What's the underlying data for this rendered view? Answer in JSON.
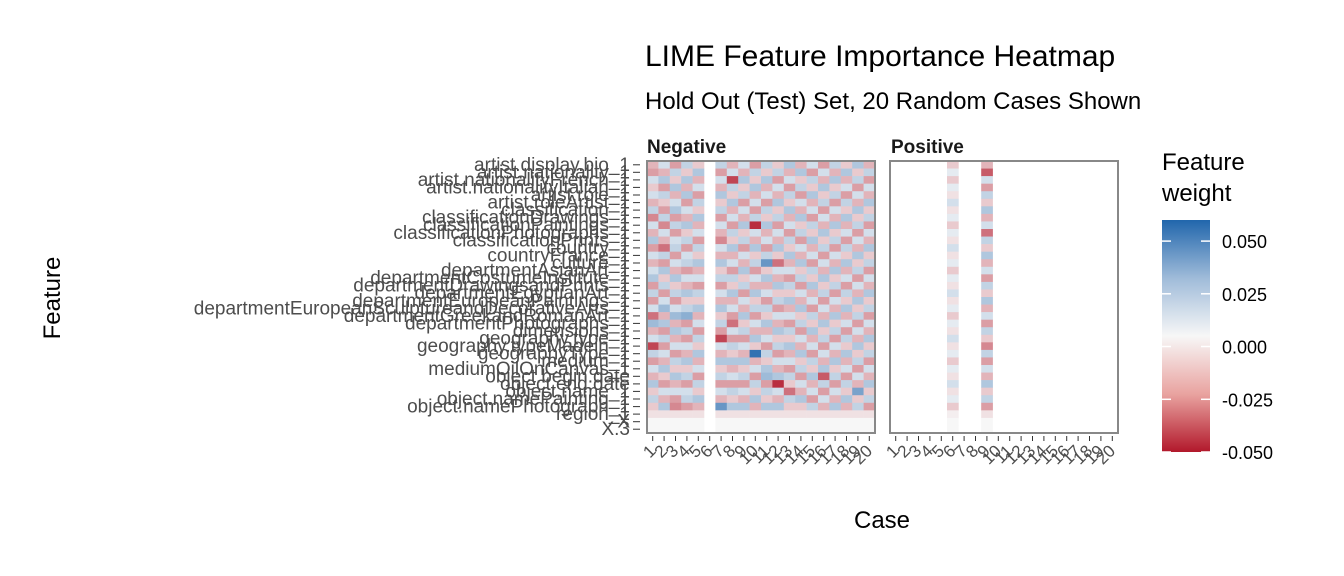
{
  "chart_data": {
    "type": "heatmap",
    "title": "LIME Feature Importance Heatmap",
    "subtitle": "Hold Out (Test) Set, 20 Random Cases Shown",
    "xlabel": "Case",
    "ylabel": "Feature",
    "facets": [
      "Negative",
      "Positive"
    ],
    "cases": [
      "1",
      "2",
      "3",
      "4",
      "5",
      "6",
      "7",
      "8",
      "9",
      "10",
      "11",
      "12",
      "13",
      "14",
      "15",
      "16",
      "17",
      "18",
      "19",
      "20"
    ],
    "x_tick_labels": [
      "1",
      "2",
      "3",
      "4",
      "5",
      "6",
      "7",
      "8",
      "9",
      "10",
      "11",
      "12",
      "13",
      "14",
      "15",
      "16",
      "17",
      "18",
      "19",
      "20"
    ],
    "features": [
      "artist.display.bio_1",
      "artist.nationality_1",
      "artist.nationalityFrench_1",
      "artist.nationalityItalian_1",
      "artist.role_1",
      "artist.roleArtist_1",
      "classification_1",
      "classificationDrawings_1",
      "classificationPaintings_1",
      "classificationPhotographs_1",
      "classificationPrints_1",
      "country_1",
      "countryFrance_1",
      "culture_1",
      "departmentAsianArt_1",
      "departmentCostumeInstitute_1",
      "departmentDrawingsandPrints_1",
      "departmentEgyptianArt_1",
      "departmentEuropeanPaintings_1",
      "departmentEuropeanSculptureandDecorativeArts_1",
      "departmentGreekandRomanArt_1",
      "departmentPhotographs_1",
      "dimensions_1",
      "geography.type_1",
      "geography.typeMadein_1",
      "geographyType_1",
      "medium_1",
      "mediumOilOnCanvas_1",
      "object.begin.date",
      "object.end.date",
      "object.name_1",
      "object.namePainting_1",
      "object.namePhotograph_1",
      "region_1",
      "X",
      "X.3"
    ],
    "y_tick_labels": [
      "artist.display.bio_1",
      "artist.nationality_1",
      "artist.nationalityFrench_1",
      "artist.nationalityItalian_1",
      "artist.role_1",
      "artist.roleArtist_1",
      "classification_1",
      "classificationDrawings_1",
      "classificationPaintings_1",
      "classificationPhotographs_1",
      "classificationPrints_1",
      "country_1",
      "countryFrance_1",
      "culture_1",
      "departmentAsianArt_1",
      "departmentCostumeInstitute_1",
      "departmentDrawingsandPrints_1",
      "departmentEgyptianArt_1",
      "departmentEuropeanPaintings_1",
      "departmentEuropeanSculptureandDecorativeArts_1",
      "departmentGreekandRomanArt_1",
      "departmentPhotographs_1",
      "dimensions_1",
      "geography.type_1",
      "geography.typeMadein_1",
      "geographyType_1",
      "medium_1",
      "mediumOilOnCanvas_1",
      "object.begin.date",
      "object.end.date",
      "object.name_1",
      "object.namePainting_1",
      "object.namePhotograph_1",
      "region_1",
      "X",
      "X.3"
    ],
    "negative_cases": [
      "1",
      "2",
      "3",
      "4",
      "5",
      "7",
      "8",
      "9",
      "10",
      "11",
      "12",
      "13",
      "14",
      "15",
      "16",
      "17",
      "18",
      "19",
      "20"
    ],
    "positive_cases": [
      "6",
      "9"
    ],
    "weights": {
      "Negative": {
        "1": [
          -0.015,
          -0.02,
          0.01,
          -0.01,
          0.01,
          -0.015,
          0.015,
          -0.025,
          0.01,
          -0.015,
          0.02,
          -0.02,
          0.01,
          -0.015,
          0.01,
          0.02,
          -0.02,
          0.015,
          -0.02,
          0.01,
          -0.03,
          0.025,
          -0.015,
          0.01,
          -0.04,
          0.015,
          -0.02,
          0.01,
          -0.015,
          0.02,
          -0.01,
          0.015,
          -0.01,
          -0.005,
          0,
          0
        ],
        "2": [
          0.01,
          -0.015,
          0.02,
          -0.02,
          0.015,
          -0.01,
          -0.02,
          0.015,
          -0.025,
          0.01,
          -0.015,
          -0.03,
          0.015,
          -0.02,
          0.02,
          -0.01,
          0.015,
          -0.02,
          0.01,
          0.025,
          -0.015,
          0.02,
          -0.02,
          0.015,
          -0.02,
          0.01,
          -0.015,
          0.02,
          -0.01,
          -0.02,
          0.01,
          -0.015,
          0.02,
          -0.005,
          0,
          0
        ],
        "3": [
          -0.02,
          0.015,
          -0.01,
          0.02,
          -0.015,
          0.01,
          0.02,
          -0.02,
          0.015,
          -0.02,
          0.01,
          0.015,
          -0.02,
          0.01,
          -0.015,
          0.02,
          -0.01,
          0.015,
          -0.02,
          0.01,
          0.025,
          -0.015,
          0.02,
          -0.015,
          0.01,
          -0.02,
          0.015,
          -0.01,
          0.02,
          -0.015,
          0.01,
          -0.02,
          -0.025,
          -0.005,
          0,
          0
        ],
        "4": [
          0.015,
          -0.01,
          0.02,
          -0.015,
          0.02,
          -0.02,
          0.01,
          -0.015,
          0.02,
          -0.01,
          0.015,
          -0.02,
          0.01,
          0.015,
          -0.02,
          0.01,
          -0.015,
          0.02,
          -0.01,
          0.015,
          0.03,
          -0.02,
          0.015,
          -0.02,
          0.01,
          -0.015,
          0.02,
          -0.01,
          0.015,
          -0.02,
          0.01,
          0.015,
          -0.02,
          -0.005,
          0,
          0
        ],
        "5": [
          -0.01,
          0.02,
          -0.015,
          0.01,
          -0.02,
          0.015,
          -0.01,
          0.02,
          -0.015,
          0.01,
          -0.02,
          0.015,
          -0.01,
          0.02,
          -0.015,
          0.01,
          -0.02,
          0.015,
          -0.01,
          0.02,
          -0.015,
          0.01,
          -0.02,
          0.015,
          -0.01,
          0.02,
          -0.015,
          0.01,
          -0.02,
          0.015,
          -0.01,
          0.02,
          -0.015,
          -0.005,
          0,
          0
        ],
        "7": [
          0.015,
          -0.02,
          0.01,
          -0.015,
          0.02,
          -0.01,
          0.015,
          -0.02,
          0.01,
          -0.015,
          -0.025,
          0.01,
          -0.015,
          0.02,
          -0.01,
          0.015,
          -0.02,
          0.01,
          -0.015,
          0.02,
          -0.01,
          0.015,
          -0.02,
          -0.04,
          0.01,
          -0.015,
          0.02,
          -0.01,
          0.015,
          -0.02,
          0.01,
          -0.015,
          0.04,
          -0.005,
          0,
          0
        ],
        "8": [
          -0.015,
          0.01,
          -0.04,
          0.015,
          -0.01,
          0.02,
          -0.015,
          0.01,
          -0.02,
          0.015,
          -0.01,
          0.02,
          -0.015,
          0.01,
          -0.02,
          0.015,
          -0.01,
          0.02,
          -0.015,
          0.01,
          -0.02,
          -0.03,
          0.01,
          -0.02,
          0.015,
          -0.01,
          0.02,
          -0.015,
          0.01,
          -0.02,
          0.015,
          -0.01,
          0.02,
          -0.005,
          0,
          0
        ],
        "9": [
          0.01,
          -0.015,
          0.02,
          -0.01,
          0.015,
          -0.02,
          0.01,
          -0.015,
          0.02,
          -0.01,
          0.015,
          -0.02,
          0.01,
          -0.015,
          0.02,
          -0.01,
          0.015,
          -0.02,
          0.01,
          -0.015,
          0.02,
          -0.01,
          0.015,
          -0.02,
          0.01,
          -0.015,
          0.02,
          -0.01,
          0.015,
          -0.02,
          0.01,
          -0.015,
          0.02,
          -0.005,
          0,
          0
        ],
        "10": [
          -0.02,
          0.015,
          -0.01,
          0.02,
          -0.015,
          0.01,
          -0.02,
          0.015,
          -0.045,
          0.01,
          -0.015,
          0.02,
          -0.01,
          0.015,
          -0.02,
          0.01,
          -0.015,
          0.02,
          -0.01,
          0.015,
          -0.02,
          0.01,
          -0.015,
          0.02,
          -0.01,
          0.055,
          -0.015,
          0.01,
          -0.02,
          0.015,
          -0.01,
          0.02,
          -0.015,
          -0.005,
          0,
          0
        ],
        "11": [
          0.015,
          -0.01,
          0.02,
          -0.015,
          0.01,
          -0.02,
          0.015,
          -0.01,
          0.02,
          -0.015,
          0.01,
          -0.02,
          0.015,
          0.04,
          -0.01,
          0.02,
          -0.015,
          0.01,
          -0.02,
          0.015,
          -0.01,
          0.02,
          -0.015,
          0.01,
          -0.02,
          0.015,
          -0.01,
          0.02,
          0.025,
          -0.02,
          0.015,
          -0.01,
          0.02,
          -0.005,
          0,
          0
        ],
        "12": [
          -0.01,
          0.015,
          -0.02,
          0.01,
          -0.015,
          0.02,
          -0.01,
          0.015,
          -0.02,
          0.01,
          -0.015,
          0.02,
          -0.01,
          -0.03,
          0.01,
          -0.015,
          0.02,
          -0.01,
          0.015,
          -0.02,
          0.01,
          -0.015,
          0.02,
          -0.01,
          0.015,
          -0.02,
          0.01,
          -0.015,
          0.02,
          -0.045,
          0.01,
          -0.015,
          0.02,
          -0.005,
          0,
          0
        ],
        "13": [
          0.02,
          -0.015,
          0.01,
          -0.02,
          0.015,
          -0.01,
          0.02,
          -0.015,
          0.01,
          -0.02,
          0.015,
          -0.01,
          0.02,
          -0.015,
          0.01,
          -0.02,
          0.015,
          -0.01,
          0.02,
          -0.015,
          0.01,
          -0.02,
          0.015,
          -0.01,
          0.02,
          -0.015,
          0.01,
          -0.02,
          0.015,
          -0.01,
          -0.03,
          0.015,
          -0.01,
          -0.005,
          0,
          0
        ],
        "14": [
          -0.015,
          0.02,
          -0.01,
          0.015,
          -0.02,
          0.01,
          -0.015,
          0.02,
          -0.01,
          0.015,
          -0.02,
          0.01,
          -0.015,
          0.02,
          -0.01,
          0.015,
          -0.02,
          0.01,
          -0.015,
          0.02,
          -0.01,
          0.015,
          -0.02,
          0.01,
          -0.015,
          0.02,
          -0.01,
          0.015,
          -0.02,
          0.01,
          -0.015,
          0.02,
          -0.01,
          -0.005,
          0,
          0
        ],
        "15": [
          0.01,
          -0.02,
          0.015,
          -0.01,
          0.02,
          -0.015,
          0.01,
          -0.02,
          0.015,
          -0.01,
          0.02,
          -0.015,
          0.01,
          -0.02,
          0.015,
          -0.01,
          0.02,
          -0.015,
          0.01,
          -0.02,
          0.015,
          -0.01,
          0.02,
          -0.015,
          0.01,
          -0.02,
          0.015,
          -0.01,
          0.02,
          -0.015,
          0.01,
          -0.02,
          0.015,
          -0.005,
          0,
          0
        ],
        "16": [
          -0.02,
          0.01,
          -0.015,
          0.02,
          -0.01,
          0.015,
          -0.02,
          0.01,
          -0.015,
          0.02,
          -0.01,
          0.015,
          -0.02,
          0.01,
          -0.015,
          0.02,
          -0.01,
          0.015,
          -0.02,
          0.01,
          -0.015,
          0.02,
          -0.01,
          0.015,
          -0.02,
          0.01,
          -0.015,
          0.02,
          -0.035,
          0.015,
          -0.02,
          0.01,
          -0.015,
          -0.005,
          0,
          0
        ],
        "17": [
          0.015,
          -0.015,
          0.02,
          -0.01,
          0.015,
          -0.02,
          0.01,
          -0.015,
          0.02,
          -0.01,
          0.015,
          -0.02,
          0.01,
          -0.015,
          0.02,
          -0.01,
          0.015,
          -0.02,
          0.01,
          -0.015,
          0.02,
          -0.01,
          0.015,
          -0.02,
          0.01,
          -0.015,
          0.02,
          -0.01,
          0.015,
          -0.02,
          0.01,
          -0.015,
          0.02,
          -0.005,
          0,
          0
        ],
        "18": [
          -0.01,
          0.02,
          -0.015,
          0.01,
          -0.02,
          0.015,
          -0.01,
          0.02,
          -0.015,
          0.01,
          -0.02,
          0.015,
          -0.01,
          0.02,
          -0.015,
          0.01,
          -0.02,
          0.015,
          -0.01,
          0.02,
          -0.015,
          0.01,
          -0.02,
          0.015,
          -0.01,
          0.02,
          -0.015,
          0.01,
          -0.02,
          0.015,
          -0.01,
          0.02,
          -0.015,
          -0.005,
          0,
          0
        ],
        "19": [
          0.02,
          -0.01,
          0.015,
          -0.02,
          0.01,
          -0.015,
          0.02,
          -0.01,
          0.015,
          -0.02,
          0.01,
          -0.015,
          0.02,
          -0.01,
          0.015,
          -0.02,
          0.01,
          -0.015,
          0.02,
          -0.01,
          0.015,
          -0.02,
          0.01,
          -0.015,
          0.02,
          -0.01,
          0.015,
          -0.02,
          0.01,
          -0.015,
          0.035,
          -0.01,
          0.015,
          -0.005,
          0,
          0
        ],
        "20": [
          -0.015,
          0.015,
          -0.02,
          0.01,
          -0.015,
          0.02,
          -0.01,
          0.015,
          -0.02,
          0.01,
          -0.015,
          0.02,
          -0.01,
          0.015,
          -0.02,
          0.01,
          -0.015,
          0.02,
          -0.01,
          0.015,
          -0.02,
          0.01,
          -0.015,
          0.02,
          -0.01,
          0.015,
          -0.02,
          0.01,
          -0.015,
          0.02,
          -0.01,
          0.015,
          -0.02,
          -0.005,
          0,
          0
        ]
      },
      "Positive": {
        "6": [
          -0.01,
          0.005,
          -0.01,
          0.005,
          -0.005,
          0.01,
          -0.005,
          0.005,
          -0.01,
          0.005,
          -0.005,
          0.01,
          -0.005,
          0.005,
          -0.01,
          0.005,
          -0.005,
          0.01,
          -0.005,
          0.005,
          -0.01,
          0.005,
          -0.005,
          0.01,
          -0.005,
          0.005,
          -0.01,
          0.005,
          -0.005,
          0.01,
          -0.005,
          0.005,
          -0.01,
          -0.002,
          0,
          0
        ],
        "9": [
          -0.015,
          -0.035,
          0.01,
          -0.02,
          0.015,
          -0.01,
          0.02,
          -0.015,
          0.01,
          -0.03,
          0.015,
          -0.01,
          0.02,
          -0.015,
          0.01,
          -0.02,
          0.015,
          -0.01,
          0.02,
          -0.015,
          0.01,
          -0.02,
          0.015,
          -0.01,
          -0.025,
          0.015,
          -0.02,
          0.01,
          -0.015,
          0.02,
          -0.01,
          0.015,
          -0.02,
          -0.005,
          0,
          0
        ]
      }
    },
    "legend": {
      "title": "Feature\nweight",
      "title_lines": [
        "Feature",
        "weight"
      ],
      "position": "right",
      "ticks": [
        0.05,
        0.025,
        0,
        -0.025,
        -0.05
      ],
      "tick_labels": [
        "0.050",
        "0.025",
        "0.000",
        "-0.025",
        "-0.050"
      ],
      "range": [
        -0.05,
        0.06
      ],
      "colors": {
        "low": "#b2182b",
        "mid": "#f7f7f7",
        "high": "#2166ac"
      }
    },
    "grid": false
  }
}
